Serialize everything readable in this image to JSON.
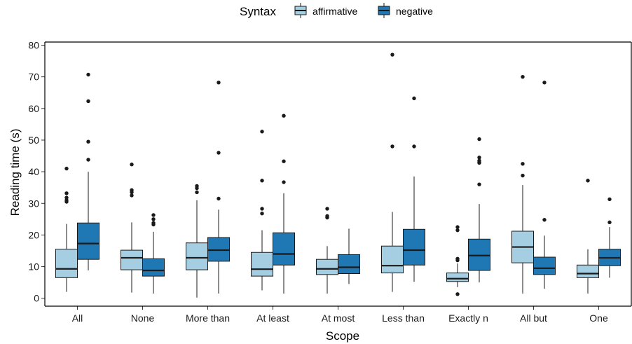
{
  "chart_data": {
    "type": "boxplot",
    "xlabel": "Scope",
    "ylabel": "Reading time (s)",
    "ylim": [
      -2.5,
      81
    ],
    "yticks": [
      0,
      10,
      20,
      30,
      40,
      50,
      60,
      70,
      80
    ],
    "categories": [
      "All",
      "None",
      "More than",
      "At least",
      "At most",
      "Less than",
      "Exactly n",
      "All but",
      "One"
    ],
    "legend": {
      "title": "Syntax",
      "position": "top",
      "entries": [
        "affirmative",
        "negative"
      ]
    },
    "colors": {
      "affirmative": "#a6cee3",
      "negative": "#1f78b4",
      "line": "#1a1a1a"
    },
    "series": [
      {
        "name": "affirmative",
        "boxes": [
          {
            "whisker_low": 2.0,
            "q1": 6.5,
            "median": 9.3,
            "q3": 15.5,
            "whisker_high": 23.5,
            "outliers": [
              41.0,
              33.2,
              31.8,
              31.0,
              30.5
            ]
          },
          {
            "whisker_low": 1.8,
            "q1": 9.0,
            "median": 12.8,
            "q3": 15.2,
            "whisker_high": 24.0,
            "outliers": [
              42.3,
              34.2,
              33.5,
              32.5
            ]
          },
          {
            "whisker_low": 0.2,
            "q1": 9.0,
            "median": 12.8,
            "q3": 17.5,
            "whisker_high": 31.0,
            "outliers": [
              35.5,
              34.8,
              33.5
            ]
          },
          {
            "whisker_low": 2.5,
            "q1": 7.0,
            "median": 9.2,
            "q3": 14.5,
            "whisker_high": 21.5,
            "outliers": [
              52.7,
              37.2,
              28.3,
              26.8
            ]
          },
          {
            "whisker_low": 1.5,
            "q1": 7.5,
            "median": 9.3,
            "q3": 12.3,
            "whisker_high": 16.5,
            "outliers": [
              28.3,
              26.0,
              25.5
            ]
          },
          {
            "whisker_low": 2.0,
            "q1": 8.0,
            "median": 10.3,
            "q3": 16.5,
            "whisker_high": 27.3,
            "outliers": [
              77.0,
              48.0
            ]
          },
          {
            "whisker_low": 3.5,
            "q1": 5.3,
            "median": 6.2,
            "q3": 8.0,
            "whisker_high": 11.0,
            "outliers": [
              22.5,
              21.5,
              12.5,
              12.0,
              1.3
            ]
          },
          {
            "whisker_low": 1.5,
            "q1": 11.2,
            "median": 16.2,
            "q3": 21.2,
            "whisker_high": 35.8,
            "outliers": [
              70.0,
              42.5,
              38.8
            ]
          },
          {
            "whisker_low": 1.5,
            "q1": 6.5,
            "median": 7.8,
            "q3": 10.5,
            "whisker_high": 15.5,
            "outliers": [
              37.2
            ]
          }
        ]
      },
      {
        "name": "negative",
        "boxes": [
          {
            "whisker_low": 8.8,
            "q1": 12.3,
            "median": 17.3,
            "q3": 23.8,
            "whisker_high": 40.0,
            "outliers": [
              70.7,
              62.3,
              49.5,
              43.8
            ]
          },
          {
            "whisker_low": 1.5,
            "q1": 7.0,
            "median": 8.8,
            "q3": 12.5,
            "whisker_high": 21.0,
            "outliers": [
              26.3,
              25.0,
              23.8,
              23.3
            ]
          },
          {
            "whisker_low": 1.5,
            "q1": 11.7,
            "median": 15.2,
            "q3": 19.2,
            "whisker_high": 28.0,
            "outliers": [
              68.2,
              46.0,
              31.5
            ]
          },
          {
            "whisker_low": 1.5,
            "q1": 10.5,
            "median": 14.0,
            "q3": 20.7,
            "whisker_high": 33.2,
            "outliers": [
              57.7,
              43.3,
              36.7
            ]
          },
          {
            "whisker_low": 4.5,
            "q1": 7.8,
            "median": 9.8,
            "q3": 13.8,
            "whisker_high": 22.0,
            "outliers": []
          },
          {
            "whisker_low": 5.2,
            "q1": 10.5,
            "median": 15.2,
            "q3": 21.8,
            "whisker_high": 38.5,
            "outliers": [
              63.2,
              48.0
            ]
          },
          {
            "whisker_low": 5.0,
            "q1": 8.8,
            "median": 13.5,
            "q3": 18.7,
            "whisker_high": 29.8,
            "outliers": [
              50.3,
              44.5,
              43.5,
              43.0,
              42.8,
              36.0
            ]
          },
          {
            "whisker_low": 3.0,
            "q1": 7.5,
            "median": 9.5,
            "q3": 13.0,
            "whisker_high": 19.8,
            "outliers": [
              68.2,
              24.8
            ]
          },
          {
            "whisker_low": 6.5,
            "q1": 10.3,
            "median": 12.8,
            "q3": 15.5,
            "whisker_high": 22.5,
            "outliers": [
              31.3,
              24.0
            ]
          }
        ]
      }
    ]
  }
}
